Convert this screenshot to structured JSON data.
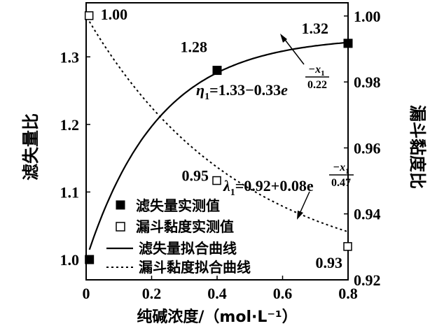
{
  "chart_data": {
    "type": "line",
    "x_axis": {
      "label": "纯碱浓度/（mol·L⁻¹）",
      "range": [
        0,
        0.8
      ],
      "ticks": [
        "0",
        "0.2",
        "0.4",
        "0.6",
        "0.8"
      ]
    },
    "y_left": {
      "label": "滤失量比",
      "range": [
        0.97,
        1.38
      ],
      "ticks": [
        "1.0",
        "1.1",
        "1.2",
        "1.3"
      ]
    },
    "y_right": {
      "label": "漏斗黏度比",
      "range": [
        0.92,
        1.004
      ],
      "ticks": [
        "0.92",
        "0.94",
        "0.96",
        "0.98",
        "1.00"
      ]
    },
    "series": [
      {
        "name": "滤失量实测值",
        "axis": "left",
        "marker": "filled-square",
        "x": [
          0.01,
          0.4,
          0.8
        ],
        "y": [
          1.0,
          1.28,
          1.32
        ],
        "labels": [
          "",
          "1.28",
          "1.32"
        ]
      },
      {
        "name": "漏斗黏度实测值",
        "axis": "right",
        "marker": "open-square",
        "x": [
          0.01,
          0.4,
          0.8
        ],
        "y": [
          1.0,
          0.95,
          0.93
        ],
        "labels": [
          "1.00",
          "0.95",
          "0.93"
        ]
      },
      {
        "name": "滤失量拟合曲线",
        "axis": "left",
        "style": "solid",
        "formula": "η1=1.33-0.33e^(-x1/0.22)"
      },
      {
        "name": "漏斗黏度拟合曲线",
        "axis": "right",
        "style": "dotted",
        "formula": "λ1=0.92+0.08e^(-x1/0.47)"
      }
    ],
    "annotations": {
      "eta_formula": {
        "sym": "η",
        "sub": "1",
        "body": "=1.33−0.33",
        "e": "e",
        "num": "−x",
        "numsub": "1",
        "den": "0.22"
      },
      "lambda_formula": {
        "sym": "λ",
        "sub": "1",
        "body": "=0.92+0.08",
        "e": "e",
        "num": "−x",
        "numsub": "1",
        "den": "0.47"
      }
    },
    "legend_position": "bottom-left"
  }
}
